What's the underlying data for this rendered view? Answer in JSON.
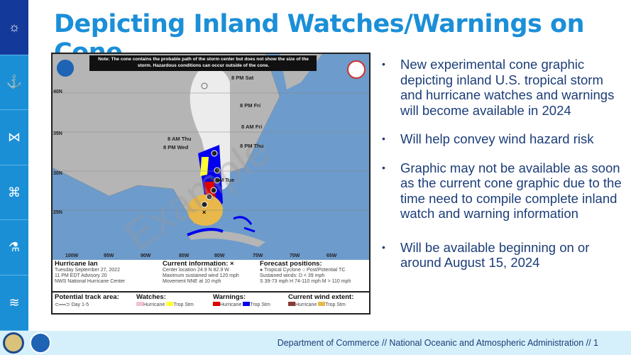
{
  "title": "Depicting Inland Watches/Warnings on Cone",
  "sidebar": {
    "items": [
      {
        "icon": "weather-sun-cloud-icon"
      },
      {
        "icon": "coastal-lighthouse-icon"
      },
      {
        "icon": "fish-icon"
      },
      {
        "icon": "satellite-icon"
      },
      {
        "icon": "research-flask-icon"
      },
      {
        "icon": "ecosystem-icon"
      }
    ]
  },
  "bullets": [
    "New experimental cone graphic depicting inland U.S. tropical storm and hurricane watches and warnings will become available in 2024",
    "Will help convey wind hazard risk",
    "Graphic may not be available as soon as the current cone graphic due to the time need to compile complete inland watch and warning information",
    "Will be available beginning on or around August 15, 2024"
  ],
  "footer": "Department of Commerce  //  National Oceanic and Atmospheric Administration  //  1",
  "map": {
    "note": "Note: The cone contains the probable path of the storm center but does not show the size of the storm. Hazardous conditions can occur outside of the cone.",
    "watermark": "Example",
    "lat_labels": [
      "40N",
      "35N",
      "30N",
      "25N"
    ],
    "lon_labels": [
      "100W",
      "95W",
      "90W",
      "85W",
      "80W",
      "75W",
      "70W",
      "65W"
    ],
    "forecast_labels": [
      "8 PM Sat",
      "8 PM Fri",
      "8 AM Fri",
      "8 PM Thu",
      "8 AM Thu",
      "8 PM Wed",
      "11 PM Tue"
    ],
    "storm": {
      "name": "Hurricane Ian",
      "date": "Tuesday September 27, 2022",
      "advisory": "11 PM EDT Advisory 20",
      "center": "NWS National Hurricane Center"
    },
    "current": {
      "heading": "Current information: ×",
      "location": "Center location 24.9 N 82.9 W",
      "wind": "Maximum sustained wind 120 mph",
      "movement": "Movement NNE at 10 mph"
    },
    "forecast": {
      "heading": "Forecast positions:",
      "tc": "Tropical Cyclone",
      "post": "Post/Potential TC",
      "winds": "Sustained winds:",
      "d": "D < 39 mph",
      "shm": "S 39-73 mph  H 74-110 mph  M > 110 mph"
    },
    "legend": {
      "track": "Potential track area:",
      "day": "Day 1-5",
      "watches": "Watches:",
      "warnings": "Warnings:",
      "wind": "Current wind extent:",
      "hurricane": "Hurricane",
      "trop": "Trop Stm"
    },
    "colors": {
      "hurr_watch": "#f4c2cf",
      "ts_watch": "#ffff33",
      "hurr_warn": "#e00000",
      "ts_warn": "#0000ee",
      "hurr_wind": "#8b3a3a",
      "ts_wind": "#e8b84a"
    }
  }
}
